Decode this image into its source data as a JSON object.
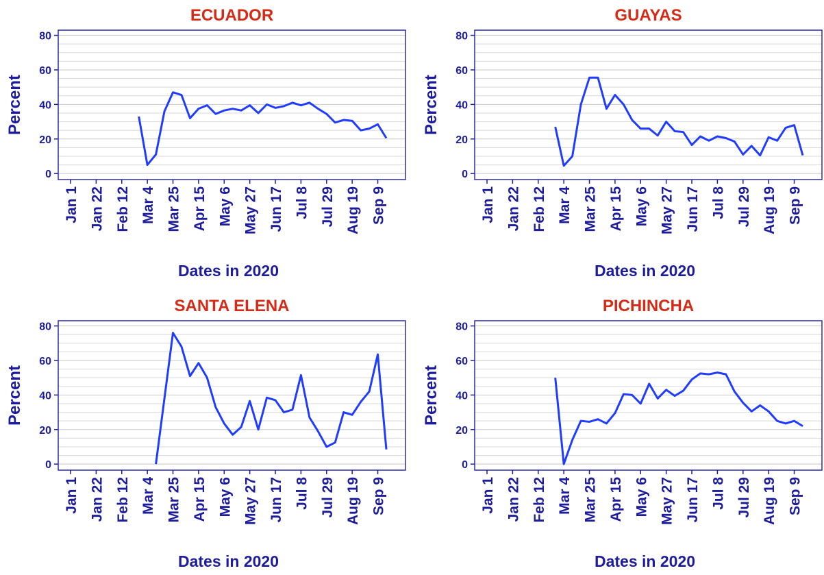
{
  "chart_data": [
    {
      "type": "line",
      "title": "ECUADOR",
      "xlabel": "Dates in 2020",
      "ylabel": "Percent",
      "categories": [
        "Jan 1",
        null,
        null,
        "Jan 22",
        null,
        null,
        "Feb 12",
        null,
        null,
        "Mar 4",
        null,
        null,
        "Mar 25",
        null,
        null,
        "Apr 15",
        null,
        null,
        "May 6",
        null,
        null,
        "May 27",
        null,
        null,
        "Jun 17",
        null,
        null,
        "Jul 8",
        null,
        null,
        "Jul 29",
        null,
        null,
        "Aug 19",
        null,
        null,
        "Sep 9",
        null
      ],
      "values": [
        null,
        null,
        null,
        null,
        null,
        null,
        null,
        null,
        33,
        5,
        11,
        36,
        47,
        45.5,
        32,
        37.5,
        39.5,
        34.5,
        36.5,
        37.5,
        36.5,
        39.5,
        35,
        40,
        38,
        39,
        41,
        39.5,
        41,
        37.5,
        34.5,
        29.5,
        31,
        30.5,
        25,
        26,
        28.5,
        20.5
      ],
      "color": "#1f3cff",
      "ylim": [
        -3.5,
        83
      ],
      "yticks": [
        0,
        20,
        40,
        60,
        80
      ],
      "yminorticks": [
        5,
        10,
        15,
        25,
        30,
        35,
        45,
        50,
        55,
        65,
        70,
        75
      ],
      "grid": true
    },
    {
      "type": "line",
      "title": "GUAYAS",
      "xlabel": "Dates in 2020",
      "ylabel": "Percent",
      "categories": [
        "Jan 1",
        null,
        null,
        "Jan 22",
        null,
        null,
        "Feb 12",
        null,
        null,
        "Mar 4",
        null,
        null,
        "Mar 25",
        null,
        null,
        "Apr 15",
        null,
        null,
        "May 6",
        null,
        null,
        "May 27",
        null,
        null,
        "Jun 17",
        null,
        null,
        "Jul 8",
        null,
        null,
        "Jul 29",
        null,
        null,
        "Aug 19",
        null,
        null,
        "Sep 9",
        null
      ],
      "values": [
        null,
        null,
        null,
        null,
        null,
        null,
        null,
        null,
        27,
        4.5,
        10,
        40,
        55.5,
        55.5,
        37.5,
        45.5,
        40,
        31,
        26,
        26,
        22,
        30,
        24.5,
        24,
        16.5,
        21.5,
        19,
        21.5,
        20.5,
        18.5,
        11,
        16,
        10.5,
        21,
        19,
        26.5,
        28,
        10.5
      ],
      "color": "#1f3cff",
      "ylim": [
        -3.5,
        83
      ],
      "yticks": [
        0,
        20,
        40,
        60,
        80
      ],
      "yminorticks": [
        5,
        10,
        15,
        25,
        30,
        35,
        45,
        50,
        55,
        65,
        70,
        75
      ],
      "grid": true
    },
    {
      "type": "line",
      "title": "SANTA ELENA",
      "xlabel": "Dates in 2020",
      "ylabel": "Percent",
      "categories": [
        "Jan 1",
        null,
        null,
        "Jan 22",
        null,
        null,
        "Feb 12",
        null,
        null,
        "Mar 4",
        null,
        null,
        "Mar 25",
        null,
        null,
        "Apr 15",
        null,
        null,
        "May 6",
        null,
        null,
        "May 27",
        null,
        null,
        "Jun 17",
        null,
        null,
        "Jul 8",
        null,
        null,
        "Jul 29",
        null,
        null,
        "Aug 19",
        null,
        null,
        "Sep 9",
        null
      ],
      "values": [
        null,
        null,
        null,
        null,
        null,
        null,
        null,
        null,
        null,
        null,
        0,
        38,
        76,
        68,
        51,
        58.5,
        50,
        33,
        23.5,
        17,
        21.5,
        36.5,
        20,
        38.5,
        37,
        30,
        31.5,
        51.5,
        27,
        19,
        10,
        12.5,
        30,
        28.5,
        36,
        42,
        63.5,
        8.5
      ],
      "color": "#1f3cff",
      "ylim": [
        -3.5,
        83
      ],
      "yticks": [
        0,
        20,
        40,
        60,
        80
      ],
      "yminorticks": [
        5,
        10,
        15,
        25,
        30,
        35,
        45,
        50,
        55,
        65,
        70,
        75
      ],
      "grid": true
    },
    {
      "type": "line",
      "title": "PICHINCHA",
      "xlabel": "Dates in 2020",
      "ylabel": "Percent",
      "categories": [
        "Jan 1",
        null,
        null,
        "Jan 22",
        null,
        null,
        "Feb 12",
        null,
        null,
        "Mar 4",
        null,
        null,
        "Mar 25",
        null,
        null,
        "Apr 15",
        null,
        null,
        "May 6",
        null,
        null,
        "May 27",
        null,
        null,
        "Jun 17",
        null,
        null,
        "Jul 8",
        null,
        null,
        "Jul 29",
        null,
        null,
        "Aug 19",
        null,
        null,
        "Sep 9",
        null
      ],
      "values": [
        null,
        null,
        null,
        null,
        null,
        null,
        null,
        null,
        50,
        0,
        14,
        25,
        24.5,
        26,
        23.5,
        29.5,
        40.5,
        40,
        35,
        46.5,
        38,
        43,
        39.5,
        42.5,
        49,
        52.5,
        52,
        53,
        52,
        42,
        35.5,
        30.5,
        34,
        30.5,
        25,
        23.5,
        25,
        22
      ],
      "color": "#1f3cff",
      "ylim": [
        -3.5,
        83
      ],
      "yticks": [
        0,
        20,
        40,
        60,
        80
      ],
      "yminorticks": [
        5,
        10,
        15,
        25,
        30,
        35,
        45,
        50,
        55,
        65,
        70,
        75
      ],
      "grid": true
    }
  ]
}
